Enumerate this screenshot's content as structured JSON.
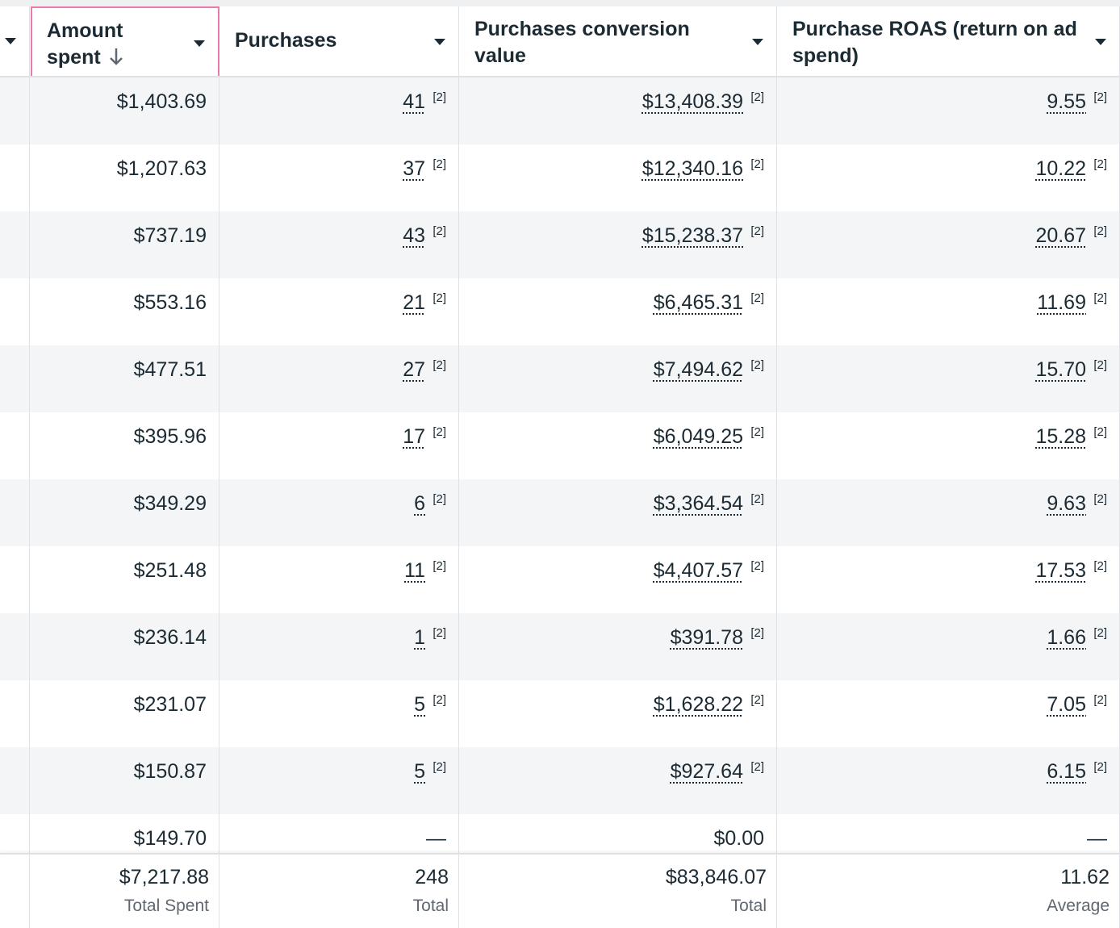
{
  "header": {
    "amount_spent_line1": "Amount",
    "amount_spent_line2": "spent",
    "purchases": "Purchases",
    "conversion_value_line1": "Purchases conversion",
    "conversion_value_line2": "value",
    "roas_line1": "Purchase ROAS (return on ad",
    "roas_line2": "spend)"
  },
  "rows": [
    {
      "amount": "$1,403.69",
      "purchases": "41",
      "purchases_note": "[2]",
      "value": "$13,408.39",
      "value_note": "[2]",
      "roas": "9.55",
      "roas_note": "[2]"
    },
    {
      "amount": "$1,207.63",
      "purchases": "37",
      "purchases_note": "[2]",
      "value": "$12,340.16",
      "value_note": "[2]",
      "roas": "10.22",
      "roas_note": "[2]"
    },
    {
      "amount": "$737.19",
      "purchases": "43",
      "purchases_note": "[2]",
      "value": "$15,238.37",
      "value_note": "[2]",
      "roas": "20.67",
      "roas_note": "[2]"
    },
    {
      "amount": "$553.16",
      "purchases": "21",
      "purchases_note": "[2]",
      "value": "$6,465.31",
      "value_note": "[2]",
      "roas": "11.69",
      "roas_note": "[2]"
    },
    {
      "amount": "$477.51",
      "purchases": "27",
      "purchases_note": "[2]",
      "value": "$7,494.62",
      "value_note": "[2]",
      "roas": "15.70",
      "roas_note": "[2]"
    },
    {
      "amount": "$395.96",
      "purchases": "17",
      "purchases_note": "[2]",
      "value": "$6,049.25",
      "value_note": "[2]",
      "roas": "15.28",
      "roas_note": "[2]"
    },
    {
      "amount": "$349.29",
      "purchases": "6",
      "purchases_note": "[2]",
      "value": "$3,364.54",
      "value_note": "[2]",
      "roas": "9.63",
      "roas_note": "[2]"
    },
    {
      "amount": "$251.48",
      "purchases": "11",
      "purchases_note": "[2]",
      "value": "$4,407.57",
      "value_note": "[2]",
      "roas": "17.53",
      "roas_note": "[2]"
    },
    {
      "amount": "$236.14",
      "purchases": "1",
      "purchases_note": "[2]",
      "value": "$391.78",
      "value_note": "[2]",
      "roas": "1.66",
      "roas_note": "[2]"
    },
    {
      "amount": "$231.07",
      "purchases": "5",
      "purchases_note": "[2]",
      "value": "$1,628.22",
      "value_note": "[2]",
      "roas": "7.05",
      "roas_note": "[2]"
    },
    {
      "amount": "$150.87",
      "purchases": "5",
      "purchases_note": "[2]",
      "value": "$927.64",
      "value_note": "[2]",
      "roas": "6.15",
      "roas_note": "[2]"
    },
    {
      "amount": "$149.70",
      "purchases": "—",
      "value": "$0.00",
      "roas": "—"
    }
  ],
  "footer": {
    "amount_total": "$7,217.88",
    "amount_label": "Total Spent",
    "purchases_total": "248",
    "purchases_label": "Total",
    "value_total": "$83,846.07",
    "value_label": "Total",
    "roas_total": "11.62",
    "roas_label": "Average"
  }
}
